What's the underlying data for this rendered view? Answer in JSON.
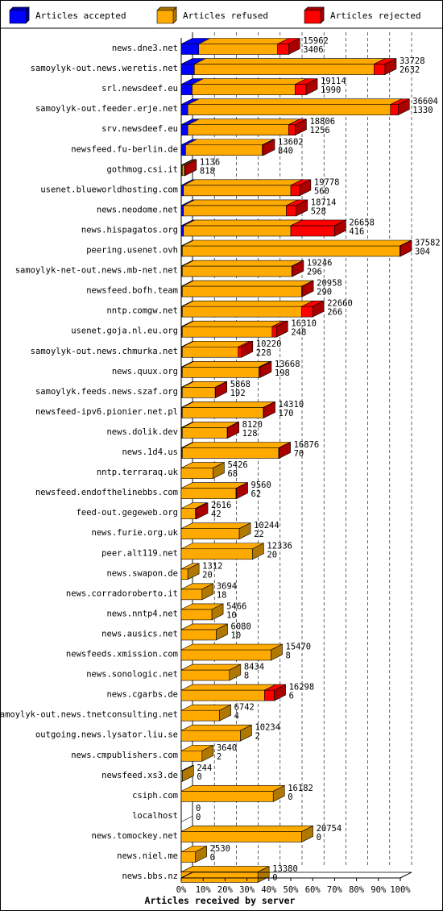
{
  "chart_data": {
    "type": "bar",
    "stacked": true,
    "orientation": "horizontal",
    "xlabel": "Articles received by server",
    "x_ticks": [
      "0%",
      "10%",
      "20%",
      "30%",
      "40%",
      "50%",
      "60%",
      "70%",
      "80%",
      "90%",
      "100%"
    ],
    "legend": [
      {
        "label": "Articles accepted",
        "color": "#0000ff",
        "side": "#000099"
      },
      {
        "label": "Articles refused",
        "color": "#ffaa00",
        "side": "#b07800"
      },
      {
        "label": "Articles rejected",
        "color": "#ff0000",
        "side": "#aa0000"
      }
    ],
    "legend_position": "top",
    "grid": "vertical dashed",
    "rows": [
      {
        "server": "news.dne3.net",
        "accepted_pct": 8.0,
        "refused_pct": 36.0,
        "rejected_pct": 5.0,
        "label1": "15962",
        "label2": "3406"
      },
      {
        "server": "samoylyk-out.news.weretis.net",
        "accepted_pct": 6.0,
        "refused_pct": 82.0,
        "rejected_pct": 5.0,
        "label1": "33728",
        "label2": "2632"
      },
      {
        "server": "srl.newsdeef.eu",
        "accepted_pct": 5.0,
        "refused_pct": 47.0,
        "rejected_pct": 5.0,
        "label1": "19114",
        "label2": "1990"
      },
      {
        "server": "samoylyk-out.feeder.erje.net",
        "accepted_pct": 3.0,
        "refused_pct": 92.5,
        "rejected_pct": 3.5,
        "label1": "36604",
        "label2": "1330"
      },
      {
        "server": "srv.newsdeef.eu",
        "accepted_pct": 3.0,
        "refused_pct": 46.0,
        "rejected_pct": 3.0,
        "label1": "18806",
        "label2": "1256"
      },
      {
        "server": "newsfeed.fu-berlin.de",
        "accepted_pct": 2.0,
        "refused_pct": 35.0,
        "rejected_pct": 0.5,
        "label1": "13602",
        "label2": "840"
      },
      {
        "server": "gothmog.csi.it",
        "accepted_pct": 0.5,
        "refused_pct": 1.0,
        "rejected_pct": 0.3,
        "label1": "1136",
        "label2": "818"
      },
      {
        "server": "usenet.blueworldhosting.com",
        "accepted_pct": 1.0,
        "refused_pct": 49.0,
        "rejected_pct": 4.0,
        "label1": "19778",
        "label2": "560"
      },
      {
        "server": "news.neodome.net",
        "accepted_pct": 1.0,
        "refused_pct": 47.0,
        "rejected_pct": 4.5,
        "label1": "18714",
        "label2": "528"
      },
      {
        "server": "news.hispagatos.org",
        "accepted_pct": 1.0,
        "refused_pct": 49.0,
        "rejected_pct": 20.0,
        "label1": "26658",
        "label2": "416"
      },
      {
        "server": "peering.usenet.ovh",
        "accepted_pct": 0.5,
        "refused_pct": 99.3,
        "rejected_pct": 0.2,
        "label1": "37582",
        "label2": "304"
      },
      {
        "server": "samoylyk-net-out.news.mb-net.net",
        "accepted_pct": 0.5,
        "refused_pct": 50.0,
        "rejected_pct": 0.2,
        "label1": "19246",
        "label2": "296"
      },
      {
        "server": "newsfeed.bofh.team",
        "accepted_pct": 0.5,
        "refused_pct": 54.5,
        "rejected_pct": 0.2,
        "label1": "20958",
        "label2": "290"
      },
      {
        "server": "nntp.comgw.net",
        "accepted_pct": 0.5,
        "refused_pct": 54.5,
        "rejected_pct": 5.0,
        "label1": "22660",
        "label2": "266"
      },
      {
        "server": "usenet.goja.nl.eu.org",
        "accepted_pct": 0.5,
        "refused_pct": 41.0,
        "rejected_pct": 2.0,
        "label1": "16310",
        "label2": "248"
      },
      {
        "server": "samoylyk-out.news.chmurka.net",
        "accepted_pct": 0.5,
        "refused_pct": 25.5,
        "rejected_pct": 1.5,
        "label1": "10220",
        "label2": "228"
      },
      {
        "server": "news.quux.org",
        "accepted_pct": 0.5,
        "refused_pct": 35.0,
        "rejected_pct": 0.5,
        "label1": "13668",
        "label2": "198"
      },
      {
        "server": "samoylyk.feeds.news.szaf.org",
        "accepted_pct": 0.5,
        "refused_pct": 15.0,
        "rejected_pct": 0.2,
        "label1": "5868",
        "label2": "192"
      },
      {
        "server": "newsfeed-ipv6.pionier.net.pl",
        "accepted_pct": 0.5,
        "refused_pct": 37.0,
        "rejected_pct": 0.2,
        "label1": "14310",
        "label2": "170"
      },
      {
        "server": "news.dolik.dev",
        "accepted_pct": 0.5,
        "refused_pct": 20.5,
        "rejected_pct": 0.2,
        "label1": "8120",
        "label2": "128"
      },
      {
        "server": "news.1d4.us",
        "accepted_pct": 0.5,
        "refused_pct": 44.0,
        "rejected_pct": 0.2,
        "label1": "16876",
        "label2": "70"
      },
      {
        "server": "nntp.terraraq.uk",
        "accepted_pct": 0.0,
        "refused_pct": 14.5,
        "rejected_pct": 0.0,
        "label1": "5426",
        "label2": "68"
      },
      {
        "server": "newsfeed.endofthelinebbs.com",
        "accepted_pct": 0.0,
        "refused_pct": 25.0,
        "rejected_pct": 0.2,
        "label1": "9560",
        "label2": "62"
      },
      {
        "server": "feed-out.gegeweb.org",
        "accepted_pct": 0.0,
        "refused_pct": 6.5,
        "rejected_pct": 0.5,
        "label1": "2616",
        "label2": "42"
      },
      {
        "server": "news.furie.org.uk",
        "accepted_pct": 0.0,
        "refused_pct": 26.5,
        "rejected_pct": 0.0,
        "label1": "10244",
        "label2": "22"
      },
      {
        "server": "peer.alt119.net",
        "accepted_pct": 0.0,
        "refused_pct": 32.5,
        "rejected_pct": 0.0,
        "label1": "12336",
        "label2": "20"
      },
      {
        "server": "news.swapon.de",
        "accepted_pct": 0.0,
        "refused_pct": 3.0,
        "rejected_pct": 0.0,
        "label1": "1312",
        "label2": "20"
      },
      {
        "server": "news.corradoroberto.it",
        "accepted_pct": 0.0,
        "refused_pct": 9.5,
        "rejected_pct": 0.0,
        "label1": "3694",
        "label2": "18"
      },
      {
        "server": "news.nntp4.net",
        "accepted_pct": 0.0,
        "refused_pct": 14.0,
        "rejected_pct": 0.0,
        "label1": "5466",
        "label2": "10"
      },
      {
        "server": "news.ausics.net",
        "accepted_pct": 0.0,
        "refused_pct": 16.0,
        "rejected_pct": 0.0,
        "label1": "6080",
        "label2": "10"
      },
      {
        "server": "newsfeeds.xmission.com",
        "accepted_pct": 0.0,
        "refused_pct": 41.0,
        "rejected_pct": 0.0,
        "label1": "15470",
        "label2": "8"
      },
      {
        "server": "news.sonologic.net",
        "accepted_pct": 0.0,
        "refused_pct": 22.0,
        "rejected_pct": 0.0,
        "label1": "8434",
        "label2": "8"
      },
      {
        "server": "news.cgarbs.de",
        "accepted_pct": 0.0,
        "refused_pct": 38.0,
        "rejected_pct": 4.5,
        "label1": "16298",
        "label2": "6"
      },
      {
        "server": "samoylyk-out.news.tnetconsulting.net",
        "accepted_pct": 0.0,
        "refused_pct": 17.5,
        "rejected_pct": 0.0,
        "label1": "6742",
        "label2": "4"
      },
      {
        "server": "outgoing.news.lysator.liu.se",
        "accepted_pct": 0.0,
        "refused_pct": 27.0,
        "rejected_pct": 0.0,
        "label1": "10234",
        "label2": "2"
      },
      {
        "server": "news.cmpublishers.com",
        "accepted_pct": 0.0,
        "refused_pct": 9.5,
        "rejected_pct": 0.0,
        "label1": "3640",
        "label2": "2"
      },
      {
        "server": "newsfeed.xs3.de",
        "accepted_pct": 0.0,
        "refused_pct": 0.5,
        "rejected_pct": 0.0,
        "label1": "244",
        "label2": "0"
      },
      {
        "server": "csiph.com",
        "accepted_pct": 0.0,
        "refused_pct": 42.0,
        "rejected_pct": 0.0,
        "label1": "16182",
        "label2": "0"
      },
      {
        "server": "localhost",
        "accepted_pct": 0.0,
        "refused_pct": 0.0,
        "rejected_pct": 0.0,
        "label1": "0",
        "label2": "0"
      },
      {
        "server": "news.tomockey.net",
        "accepted_pct": 0.0,
        "refused_pct": 55.0,
        "rejected_pct": 0.0,
        "label1": "20754",
        "label2": "0"
      },
      {
        "server": "news.niel.me",
        "accepted_pct": 0.0,
        "refused_pct": 6.5,
        "rejected_pct": 0.0,
        "label1": "2530",
        "label2": "0"
      },
      {
        "server": "news.bbs.nz",
        "accepted_pct": 0.0,
        "refused_pct": 35.0,
        "rejected_pct": 0.0,
        "label1": "13380",
        "label2": "0"
      }
    ]
  }
}
